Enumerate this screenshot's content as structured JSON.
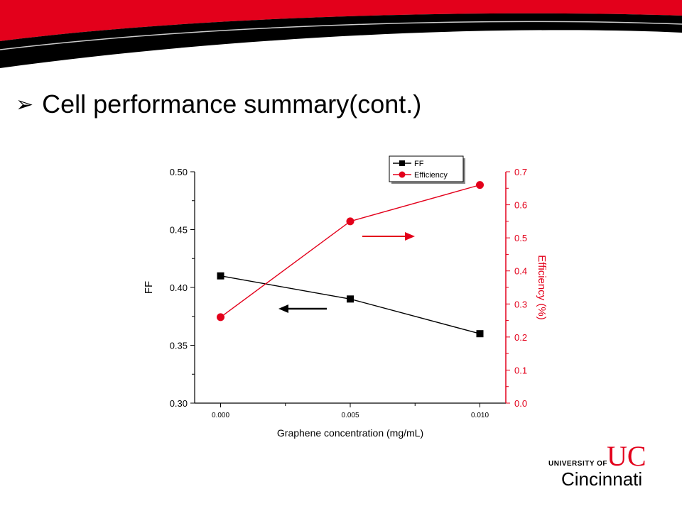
{
  "slide": {
    "title": "Cell performance summary(cont.)",
    "bullet": "➢",
    "colors": {
      "banner_red": "#e3001b",
      "banner_black": "#000000"
    }
  },
  "logo": {
    "line1": "UNIVERSITY OF",
    "line2": "Cincinnati",
    "mark": "UC"
  },
  "chart_data": {
    "type": "line",
    "xlabel": "Graphene concentration (mg/mL)",
    "x": [
      0.0,
      0.005,
      0.01
    ],
    "x_ticks": [
      "0.000",
      "0.005",
      "0.010"
    ],
    "xlim": [
      -0.001,
      0.011
    ],
    "y_left": {
      "label": "FF",
      "lim": [
        0.3,
        0.5
      ],
      "ticks": [
        "0.30",
        "0.35",
        "0.40",
        "0.45",
        "0.50"
      ],
      "color": "#000000"
    },
    "y_right": {
      "label": "Efficiency (%)",
      "lim": [
        0.0,
        0.7
      ],
      "ticks": [
        "0.0",
        "0.1",
        "0.2",
        "0.3",
        "0.4",
        "0.5",
        "0.6",
        "0.7"
      ],
      "color": "#e3001b"
    },
    "series": [
      {
        "name": "FF",
        "axis": "left",
        "marker": "square",
        "color": "#000000",
        "values": [
          0.41,
          0.39,
          0.36
        ]
      },
      {
        "name": "Efficiency",
        "axis": "right",
        "marker": "circle",
        "color": "#e3001b",
        "values": [
          0.26,
          0.55,
          0.66
        ]
      }
    ],
    "legend": "top-right",
    "grid": false
  }
}
